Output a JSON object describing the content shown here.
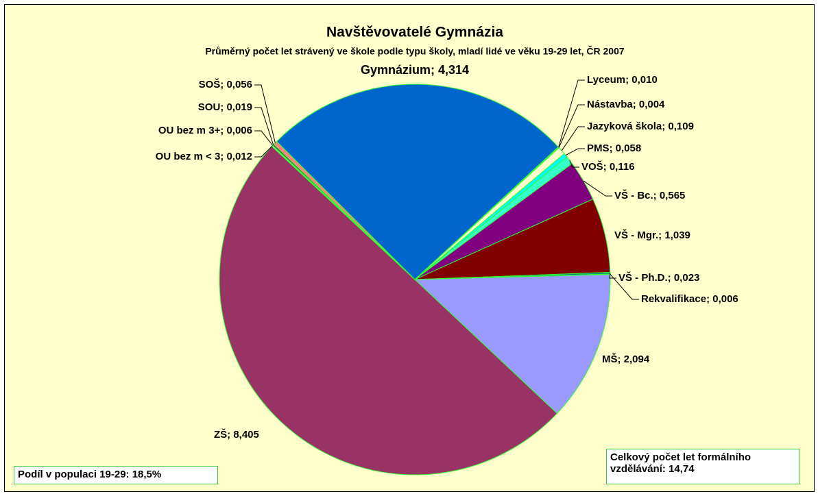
{
  "chart_data": {
    "type": "pie",
    "title": "Navštěvovatelé Gymnázia",
    "subtitle": "Průměrný počet let strávený ve škole podle typu školy, mladí lidé ve věku 19-29 let, ČR 2007",
    "values": [
      4.314,
      0.01,
      0.004,
      0.109,
      0.058,
      0.116,
      0.565,
      1.039,
      0.023,
      0.006,
      2.094,
      8.405,
      0.012,
      0.006,
      0.019,
      0.056
    ],
    "value_labels": [
      "Gymnázium; 4,314",
      "Lyceum; 0,010",
      "Nástavba; 0,004",
      "Jazyková škola; 0,109",
      "PMS; 0,058",
      "VOŠ; 0,116",
      "VŠ - Bc.; 0,565",
      "VŠ - Mgr.; 1,039",
      "VŠ - Ph.D.; 0,023",
      "Rekvalifikace; 0,006",
      "MŠ; 2,094",
      "ZŠ; 8,405",
      "OU bez m < 3; 0,012",
      "OU bez m 3+; 0,006",
      "SOU; 0,019",
      "SOŠ; 0,056"
    ],
    "colors": [
      "#0066cc",
      "#ff00ff",
      "#ffff00",
      "#ffffcc",
      "#00ffff",
      "#33ffcc",
      "#800080",
      "#800000",
      "#008080",
      "#0000ff",
      "#9999ff",
      "#993366",
      "#ffffcc",
      "#ccffff",
      "#660066",
      "#ff8080"
    ],
    "annotations": [
      "Podíl v populaci 19-29: 18,5%",
      "Celkový počet let formálního vzdělávání: 14,74"
    ]
  }
}
